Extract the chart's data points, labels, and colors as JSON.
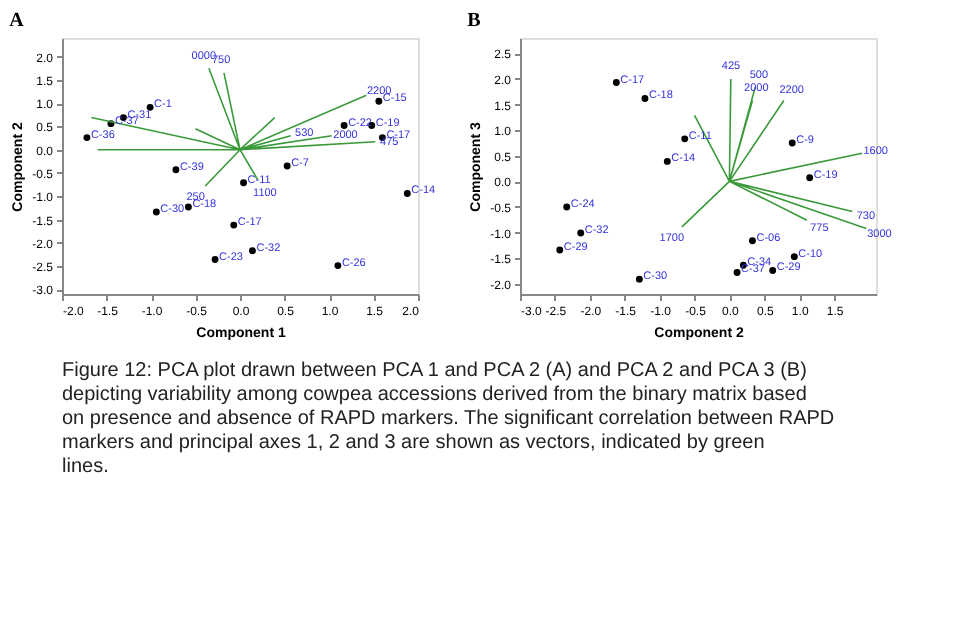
{
  "chart_data": [
    {
      "type": "scatter",
      "title": "A",
      "xlabel": "Component 1",
      "ylabel": "Component 2",
      "xlim": [
        -2.0,
        2.0
      ],
      "ylim": [
        -3.1,
        2.4
      ],
      "xticks": [
        {
          "value": -2,
          "label": "-2.0"
        },
        {
          "value": -1.5,
          "label": "-1.5"
        },
        {
          "value": -1,
          "label": "-1.0"
        },
        {
          "value": -0.5,
          "label": "-0.5"
        },
        {
          "value": 0,
          "label": "0.0"
        },
        {
          "value": 0.5,
          "label": "0.5"
        },
        {
          "value": 1,
          "label": "1.0"
        },
        {
          "value": 1.5,
          "label": "1.5"
        },
        {
          "value": 2,
          "label": "2.0"
        }
      ],
      "yticks": [
        {
          "value": -3,
          "label": "-3.0"
        },
        {
          "value": -2.5,
          "label": "-2.5"
        },
        {
          "value": -2,
          "label": "-2.0"
        },
        {
          "value": -1.5,
          "label": "-1.5"
        },
        {
          "value": -1,
          "label": "-1.0"
        },
        {
          "value": -0.5,
          "label": "-0.5"
        },
        {
          "value": 0,
          "label": "0.0"
        },
        {
          "value": 0.5,
          "label": "0.5"
        },
        {
          "value": 1,
          "label": "1.0"
        },
        {
          "value": 1.5,
          "label": "1.5"
        },
        {
          "value": 2,
          "label": "2.0"
        }
      ],
      "grid": false,
      "series": [
        {
          "marker": "circle",
          "color": "#000000",
          "x": [
            1.88,
            1.1,
            0.14,
            -0.28,
            -0.07,
            -0.94,
            -0.58,
            -0.72,
            0.04,
            1.56,
            1.48,
            1.6,
            1.17,
            -1.72,
            -1.45,
            -1.31,
            -1.01,
            0.53
          ],
          "values": [
            -0.94,
            -2.49,
            -2.17,
            -2.36,
            -1.62,
            -1.34,
            -1.23,
            -0.43,
            -0.71,
            1.04,
            0.52,
            0.26,
            0.52,
            0.26,
            0.56,
            0.69,
            0.91,
            -0.35
          ]
        },
        {
          "type": "line",
          "color": "#3a9a3a",
          "x": [
            0,
            -0.35,
            null,
            0,
            -0.18,
            null,
            0,
            1.42,
            null,
            0,
            1.03,
            null,
            0,
            1.52,
            null,
            0,
            -1.67,
            null,
            0,
            -1.6,
            null,
            0,
            0.2,
            null,
            0,
            -0.39,
            null,
            0,
            0.39,
            null,
            0,
            0.57,
            null,
            0,
            -0.5
          ],
          "values": [
            0,
            1.75,
            null,
            0,
            1.65,
            null,
            0,
            1.17,
            null,
            0,
            0.3,
            null,
            0,
            0.17,
            null,
            0,
            0.69,
            null,
            0,
            0.0,
            null,
            0,
            -0.65,
            null,
            0,
            -0.78,
            null,
            0,
            0.69,
            null,
            0,
            0.3,
            null,
            0,
            0.45
          ]
        }
      ],
      "annotations": [
        {
          "text": "C-14",
          "x": 1.88,
          "y": -0.94
        },
        {
          "text": "C-26",
          "x": 1.1,
          "y": -2.49
        },
        {
          "text": "C-32",
          "x": 0.14,
          "y": -2.17
        },
        {
          "text": "C-23",
          "x": -0.28,
          "y": -2.36
        },
        {
          "text": "C-17",
          "x": -0.07,
          "y": -1.62
        },
        {
          "text": "C-30",
          "x": -0.94,
          "y": -1.34
        },
        {
          "text": "C-18",
          "x": -0.58,
          "y": -1.23
        },
        {
          "text": "C-39",
          "x": -0.72,
          "y": -0.43
        },
        {
          "text": "C-11",
          "x": 0.04,
          "y": -0.71
        },
        {
          "text": "C-15",
          "x": 1.56,
          "y": 1.04
        },
        {
          "text": "C-19",
          "x": 1.48,
          "y": 0.52
        },
        {
          "text": "C-17",
          "x": 1.6,
          "y": 0.26
        },
        {
          "text": "C-22",
          "x": 1.17,
          "y": 0.52
        },
        {
          "text": "C-36",
          "x": -1.72,
          "y": 0.26
        },
        {
          "text": "C-37",
          "x": -1.45,
          "y": 0.56
        },
        {
          "text": "C-31",
          "x": -1.31,
          "y": 0.69
        },
        {
          "text": "C-1",
          "x": -1.01,
          "y": 0.91
        },
        {
          "text": "C-7",
          "x": 0.53,
          "y": -0.35
        },
        {
          "text": "0000",
          "x": -0.35,
          "y": 1.75
        },
        {
          "text": "750",
          "x": -0.18,
          "y": 1.65
        },
        {
          "text": "2200",
          "x": 1.42,
          "y": 1.17
        },
        {
          "text": "2000",
          "x": 1.03,
          "y": 0.3
        },
        {
          "text": "475",
          "x": 1.52,
          "y": 0.17
        },
        {
          "text": "1100",
          "x": 0.2,
          "y": -0.65
        },
        {
          "text": "250",
          "x": -0.39,
          "y": -0.78
        },
        {
          "text": "530",
          "x": 0.57,
          "y": 0.3
        },
        "Figure 12: PCA plot drawn between PCA 1 and PCA 2 (A) and PCA 2 and PCA 3 (B) depicting variability among cowpea accessions derived from the binary matrix based on presence and absence of RAPD markers. The significant correlation between RAPD markers and principal axes 1, 2 and 3 are shown as vectors, indicated by green lines."
      ]
    },
    {
      "type": "scatter",
      "title": "B",
      "xlabel": "Component 2",
      "ylabel": "Component 3",
      "xlim": [
        -3.0,
        2.1
      ],
      "ylim": [
        -2.2,
        2.8
      ],
      "xticks": [
        {
          "value": -3,
          "label": "-3.0"
        },
        {
          "value": -2.5,
          "label": "-2.5"
        },
        {
          "value": -2,
          "label": "-2.0"
        },
        {
          "value": -1.5,
          "label": "-1.5"
        },
        {
          "value": -1,
          "label": "-1.0"
        },
        {
          "value": -0.5,
          "label": "-0.5"
        },
        {
          "value": 0,
          "label": "0.0"
        },
        {
          "value": 0.5,
          "label": "0.5"
        },
        {
          "value": 1,
          "label": "1.0"
        },
        {
          "value": 1.5,
          "label": "1.5"
        }
      ],
      "yticks": [
        {
          "value": -2,
          "label": "-2.0"
        },
        {
          "value": -1.5,
          "label": "-1.5"
        },
        {
          "value": -1,
          "label": "-1.0"
        },
        {
          "value": -0.5,
          "label": "-0.5"
        },
        {
          "value": 0,
          "label": "0.0"
        },
        {
          "value": 0.5,
          "label": "0.5"
        },
        {
          "value": 1,
          "label": "1.0"
        },
        {
          "value": 1.5,
          "label": "1.5"
        },
        {
          "value": 2,
          "label": "2.0"
        },
        {
          "value": 2.5,
          "label": "2.5"
        }
      ],
      "grid": false,
      "series": [
        {
          "marker": "circle",
          "color": "#000000",
          "x": [
            -1.62,
            -1.21,
            -0.64,
            -0.89,
            -2.33,
            -2.13,
            -2.43,
            -1.29,
            0.33,
            0.2,
            0.11,
            0.62,
            0.93,
            1.15,
            0.9
          ],
          "values": [
            1.93,
            1.62,
            0.83,
            0.39,
            -0.5,
            -1.01,
            -1.34,
            -1.91,
            -1.16,
            -1.64,
            -1.78,
            -1.74,
            -1.47,
            0.07,
            0.75
          ]
        },
        {
          "type": "line",
          "color": "#3a9a3a",
          "x": [
            0,
            0.02,
            null,
            0,
            0.37,
            null,
            0,
            0.33,
            null,
            0,
            0.78,
            null,
            0,
            1.9,
            null,
            0,
            1.76,
            null,
            0,
            1.96,
            null,
            0,
            1.11,
            null,
            0,
            -0.68,
            null,
            0,
            -0.5
          ],
          "values": [
            0,
            2.0,
            null,
            0,
            1.84,
            null,
            0,
            1.58,
            null,
            0,
            1.58,
            null,
            0,
            0.55,
            null,
            0,
            -0.59,
            null,
            0,
            -0.92,
            null,
            0,
            -0.76,
            null,
            0,
            -0.89,
            null,
            0,
            1.29
          ]
        }
      ],
      "annotations": [
        {
          "text": "C-17",
          "x": -1.62,
          "y": 1.93
        },
        {
          "text": "C-18",
          "x": -1.21,
          "y": 1.62
        },
        {
          "text": "C-11",
          "x": -0.64,
          "y": 0.83
        },
        {
          "text": "C-14",
          "x": -0.89,
          "y": 0.39
        },
        {
          "text": "C-24",
          "x": -2.33,
          "y": -0.5
        },
        {
          "text": "C-32",
          "x": -2.13,
          "y": -1.01
        },
        {
          "text": "C-29",
          "x": -2.43,
          "y": -1.34
        },
        {
          "text": "C-30",
          "x": -1.29,
          "y": -1.91
        },
        {
          "text": "C-06",
          "x": 0.33,
          "y": -1.16
        },
        {
          "text": "C-34",
          "x": 0.2,
          "y": -1.64
        },
        {
          "text": "C-37",
          "x": 0.11,
          "y": -1.78
        },
        {
          "text": "C-29",
          "x": 0.62,
          "y": -1.74
        },
        {
          "text": "C-10",
          "x": 0.93,
          "y": -1.47
        },
        {
          "text": "C-19",
          "x": 1.15,
          "y": 0.07
        },
        {
          "text": "C-9",
          "x": 0.9,
          "y": 0.75
        },
        {
          "text": "425",
          "x": 0.02,
          "y": 2.0
        },
        {
          "text": "500",
          "x": 0.37,
          "y": 1.84
        },
        {
          "text": "2000",
          "x": 0.33,
          "y": 1.58
        },
        {
          "text": "2200",
          "x": 0.78,
          "y": 1.58
        },
        {
          "text": "1600",
          "x": 1.9,
          "y": 0.55
        },
        {
          "text": "730",
          "x": 1.76,
          "y": -0.59
        },
        {
          "text": "3000",
          "x": 1.96,
          "y": -0.92
        },
        {
          "text": "775",
          "x": 1.11,
          "y": -0.76
        },
        {
          "text": "1700",
          "x": -0.68,
          "y": -0.89
        }
      ]
    }
  ]
}
